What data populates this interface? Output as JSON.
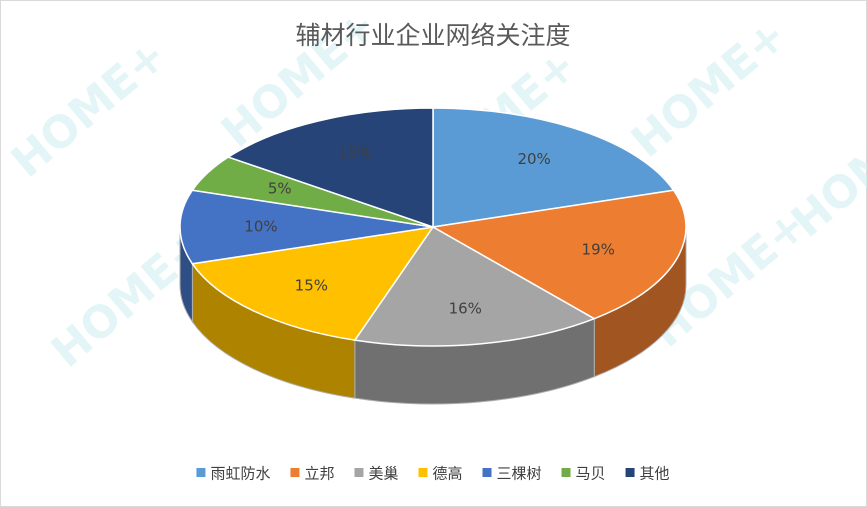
{
  "chart_data": {
    "type": "pie3d",
    "title": "辅材行业企业网络关注度",
    "categories": [
      "雨虹防水",
      "立邦",
      "美巢",
      "德高",
      "三棵树",
      "马贝",
      "其他"
    ],
    "values": [
      20,
      19,
      16,
      15,
      10,
      5,
      15
    ],
    "value_labels": [
      "20%",
      "19%",
      "16%",
      "15%",
      "10%",
      "5%",
      "15%"
    ],
    "colors": [
      "#5b9bd5",
      "#ed7d31",
      "#a5a5a5",
      "#ffc000",
      "#4472c4",
      "#70ad47",
      "#264478"
    ],
    "legend": "bottom",
    "watermark": "HOME+"
  }
}
